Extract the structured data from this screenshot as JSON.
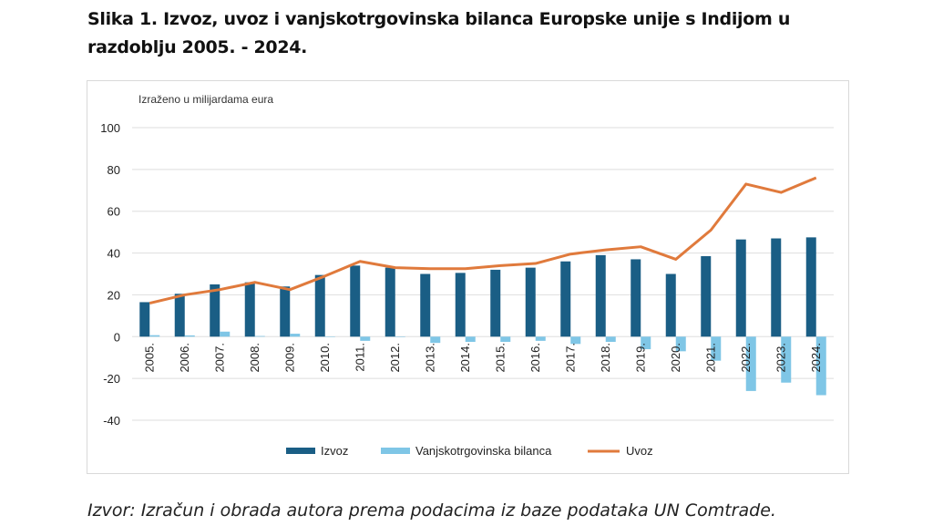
{
  "title": "Slika 1. Izvoz, uvoz i vanjskotrgovinska bilanca Europske unije s Indijom u razdoblju 2005. - 2024.",
  "source": "Izvor: Izračun i obrada autora prema podacima iz baze podataka UN Comtrade.",
  "chart_data": {
    "type": "bar",
    "title": "",
    "unit_label": "Izraženo u milijardama eura",
    "xlabel": "",
    "ylabel": "",
    "ylim": [
      -40,
      100
    ],
    "yticks": [
      100,
      80,
      60,
      40,
      20,
      0,
      -20,
      -40
    ],
    "grid": true,
    "legend_position": "bottom",
    "categories": [
      "2005.",
      "2006.",
      "2007.",
      "2008.",
      "2009.",
      "2010.",
      "2011.",
      "2012.",
      "2013.",
      "2014.",
      "2015.",
      "2016.",
      "2017.",
      "2018.",
      "2019.",
      "2020.",
      "2021.",
      "2022.",
      "2023.",
      "2024."
    ],
    "series": [
      {
        "name": "Izvoz",
        "type": "bar",
        "color": "#1a5e85",
        "values": [
          16.5,
          20.5,
          25,
          26,
          24,
          29.5,
          34,
          33,
          30,
          30.5,
          32,
          33,
          36,
          39,
          37,
          30,
          38.5,
          46.5,
          47,
          47.5
        ]
      },
      {
        "name": "Vanjskotrgovinska bilanca",
        "type": "bar",
        "color": "#7fc6e6",
        "values": [
          0.7,
          0.6,
          2.4,
          0.3,
          1.4,
          0.1,
          -2,
          0,
          -3,
          -2.5,
          -2.5,
          -2,
          -3.5,
          -2.5,
          -6,
          -7,
          -11.5,
          -26,
          -22,
          -28
        ]
      },
      {
        "name": "Uvoz",
        "type": "line",
        "color": "#e07a3c",
        "values": [
          16,
          20,
          22.5,
          26,
          22.5,
          29,
          36,
          33,
          32.5,
          32.5,
          34,
          35,
          39.5,
          41.5,
          43,
          37,
          51,
          73,
          69,
          76
        ]
      }
    ]
  }
}
